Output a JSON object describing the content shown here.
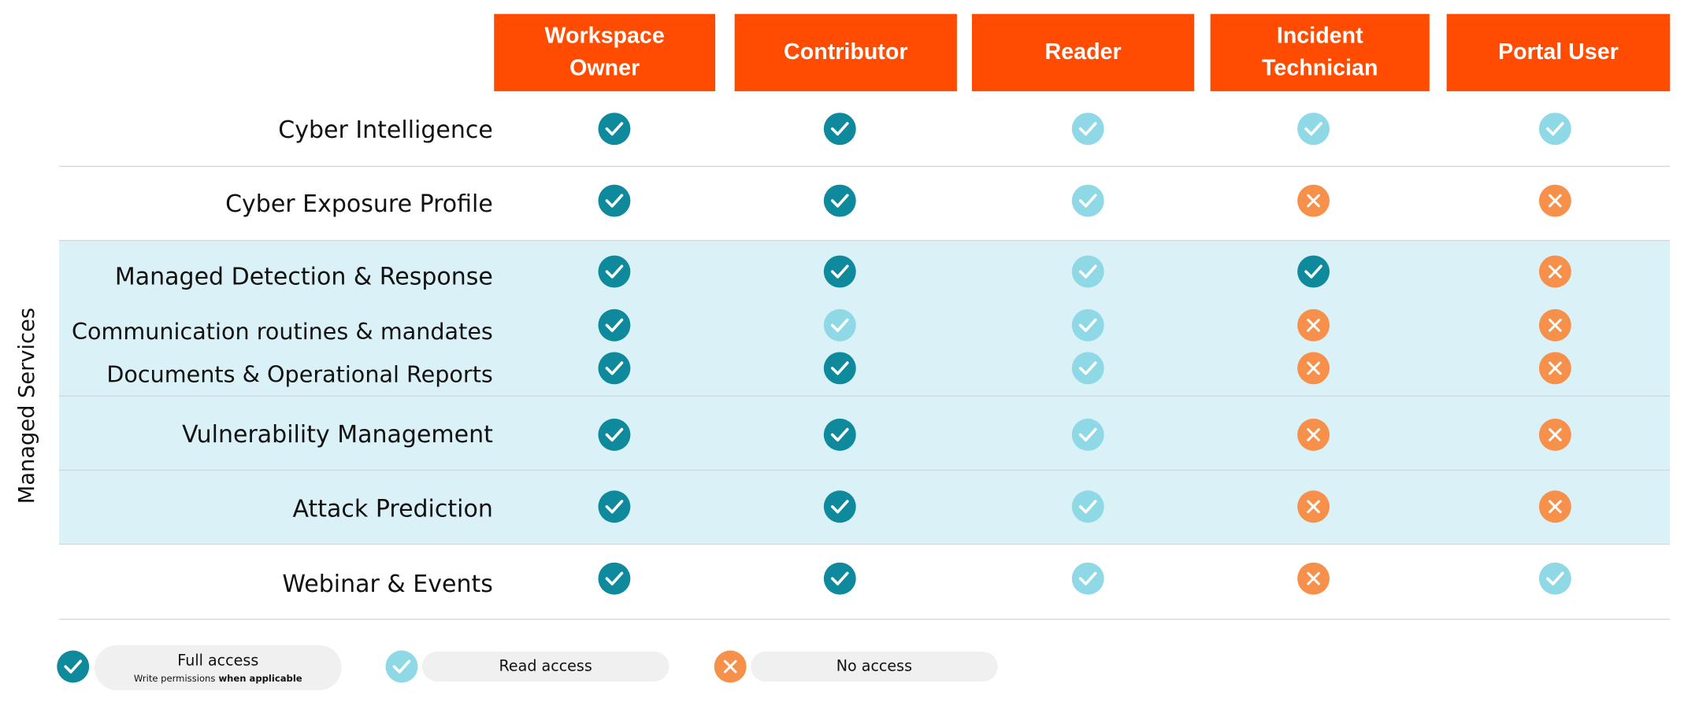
{
  "columns": [
    "Workspace Owner",
    "Contributor",
    "Reader",
    "Incident Technician",
    "Portal User"
  ],
  "group": "Managed Services",
  "rows": [
    {
      "label": "Cyber Intelligence",
      "access": [
        0,
        0,
        1,
        1,
        1
      ]
    },
    {
      "label": "Cyber Exposure Profile",
      "access": [
        0,
        0,
        1,
        2,
        2
      ]
    },
    {
      "label": "Managed Detection & Response",
      "access": [
        0,
        0,
        1,
        0,
        2
      ]
    },
    {
      "label": "Communication routines & mandates",
      "access": [
        0,
        1,
        1,
        2,
        2
      ]
    },
    {
      "label": "Documents & Operational Reports",
      "access": [
        0,
        0,
        1,
        2,
        2
      ]
    },
    {
      "label": "Vulnerability Management",
      "access": [
        0,
        0,
        1,
        2,
        2
      ]
    },
    {
      "label": "Attack Prediction",
      "access": [
        0,
        0,
        1,
        2,
        2
      ]
    },
    {
      "label": "Webinar & Events",
      "access": [
        0,
        0,
        1,
        2,
        1
      ]
    }
  ],
  "legend": [
    {
      "label": "Full access",
      "note": "Write permissions",
      "note_bold": "when applicable"
    },
    {
      "label": "Read access"
    },
    {
      "label": "No access"
    }
  ]
}
